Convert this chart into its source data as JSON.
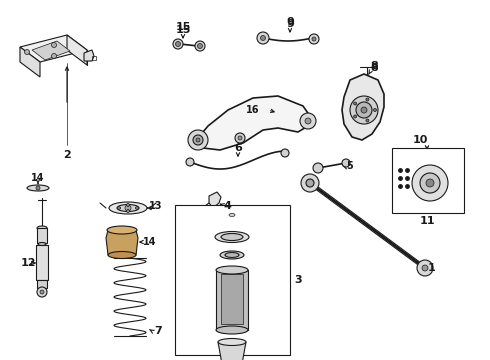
{
  "bg_color": "#ffffff",
  "line_color": "#1a1a1a",
  "gray_light": "#cccccc",
  "gray_med": "#999999",
  "gray_dark": "#555555",
  "tan": "#c8a878",
  "tan_dark": "#a07040",
  "figsize": [
    4.9,
    3.6
  ],
  "dpi": 100
}
